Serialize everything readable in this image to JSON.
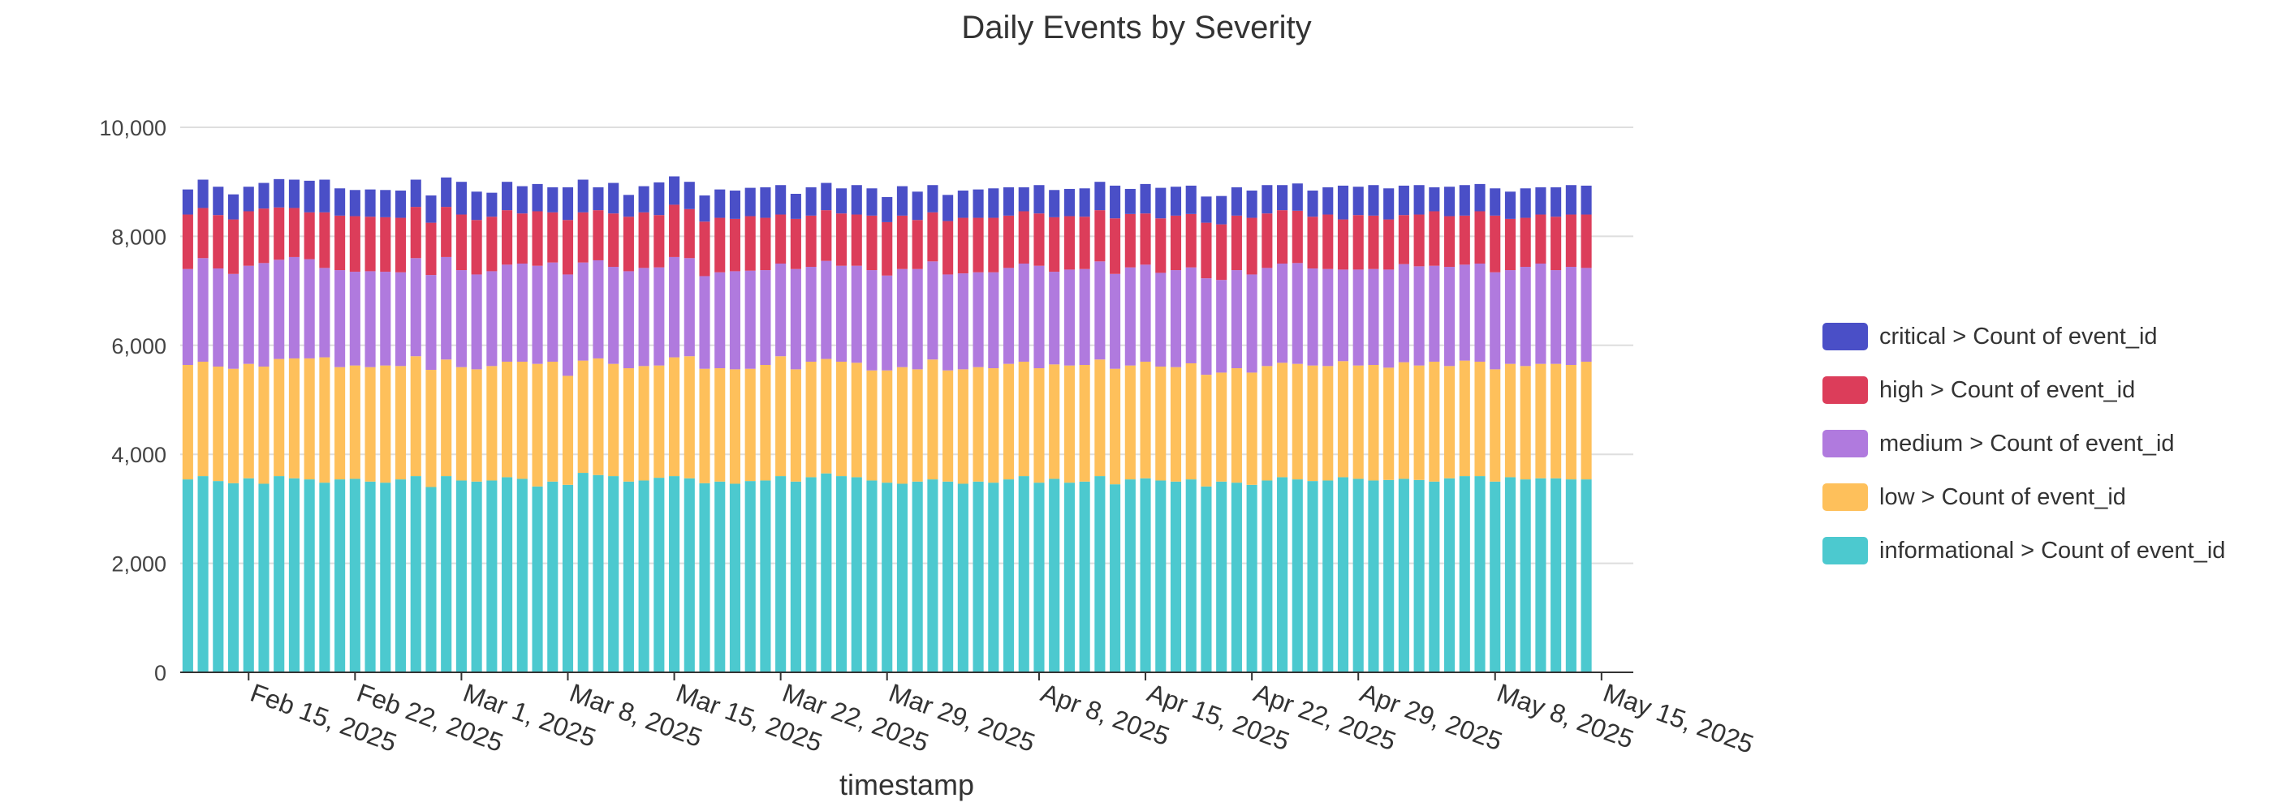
{
  "chart_data": {
    "type": "bar",
    "stacked": true,
    "title": "Daily Events by Severity",
    "xlabel": "timestamp",
    "ylabel": "",
    "ylim": [
      0,
      10000
    ],
    "yticks": [
      0,
      2000,
      4000,
      6000,
      8000,
      10000
    ],
    "ytick_labels": [
      "0",
      "2,000",
      "4,000",
      "6,000",
      "8,000",
      "10,000"
    ],
    "x_start_date": "2025-02-11",
    "x_end_date": "2025-05-13",
    "xticks": [
      "2025-02-15",
      "2025-02-22",
      "2025-03-01",
      "2025-03-08",
      "2025-03-15",
      "2025-03-22",
      "2025-03-29",
      "2025-04-08",
      "2025-04-15",
      "2025-04-22",
      "2025-04-29",
      "2025-05-08",
      "2025-05-15"
    ],
    "xtick_labels": [
      "Feb 15, 2025",
      "Feb 22, 2025",
      "Mar 1, 2025",
      "Mar 8, 2025",
      "Mar 15, 2025",
      "Mar 22, 2025",
      "Mar 29, 2025",
      "Apr 8, 2025",
      "Apr 15, 2025",
      "Apr 22, 2025",
      "Apr 29, 2025",
      "May 8, 2025",
      "May 15, 2025"
    ],
    "grid": true,
    "legend_position": "right",
    "series": [
      {
        "name": "informational > Count of event_id",
        "color": "#4CC9CF",
        "values": [
          3540,
          3600,
          3510,
          3470,
          3560,
          3460,
          3600,
          3560,
          3540,
          3480,
          3540,
          3550,
          3500,
          3480,
          3540,
          3600,
          3400,
          3600,
          3520,
          3500,
          3520,
          3580,
          3550,
          3410,
          3500,
          3440,
          3660,
          3620,
          3600,
          3500,
          3520,
          3570,
          3600,
          3560,
          3470,
          3500,
          3460,
          3510,
          3520,
          3600,
          3500,
          3580,
          3650,
          3600,
          3580,
          3520,
          3480,
          3460,
          3500,
          3540,
          3500,
          3460,
          3500,
          3480,
          3540,
          3600,
          3480,
          3550,
          3480,
          3500,
          3600,
          3450,
          3540,
          3560,
          3520,
          3500,
          3540,
          3410,
          3500,
          3480,
          3440,
          3520,
          3580,
          3540,
          3510,
          3520,
          3580,
          3550,
          3520,
          3530,
          3550,
          3530,
          3500,
          3560,
          3600,
          3600,
          3500,
          3580,
          3540,
          3560,
          3560,
          3540,
          3540
        ]
      },
      {
        "name": "low > Count of event_id",
        "color": "#FEC05B",
        "values": [
          2100,
          2100,
          2100,
          2100,
          2100,
          2150,
          2150,
          2200,
          2220,
          2300,
          2060,
          2080,
          2100,
          2150,
          2080,
          2200,
          2150,
          2140,
          2080,
          2060,
          2100,
          2120,
          2150,
          2250,
          2200,
          2000,
          2060,
          2140,
          2060,
          2080,
          2100,
          2060,
          2180,
          2240,
          2100,
          2080,
          2100,
          2060,
          2120,
          2200,
          2060,
          2120,
          2100,
          2100,
          2100,
          2020,
          2060,
          2140,
          2060,
          2200,
          2040,
          2100,
          2100,
          2100,
          2120,
          2100,
          2100,
          2100,
          2150,
          2140,
          2140,
          2120,
          2090,
          2140,
          2090,
          2100,
          2130,
          2050,
          2000,
          2100,
          2060,
          2100,
          2100,
          2120,
          2120,
          2100,
          2130,
          2080,
          2120,
          2060,
          2140,
          2100,
          2200,
          2060,
          2120,
          2100,
          2060,
          2080,
          2080,
          2100,
          2100,
          2100,
          2160
        ]
      },
      {
        "name": "medium > Count of event_id",
        "color": "#B07ADE",
        "values": [
          1760,
          1900,
          1800,
          1740,
          1800,
          1900,
          1820,
          1860,
          1820,
          1640,
          1780,
          1720,
          1760,
          1720,
          1720,
          1800,
          1740,
          1880,
          1780,
          1740,
          1740,
          1780,
          1800,
          1800,
          1820,
          1860,
          1800,
          1800,
          1780,
          1780,
          1800,
          1800,
          1840,
          1800,
          1700,
          1760,
          1800,
          1800,
          1740,
          1700,
          1840,
          1740,
          1800,
          1760,
          1780,
          1840,
          1740,
          1800,
          1840,
          1800,
          1760,
          1760,
          1740,
          1760,
          1760,
          1800,
          1880,
          1700,
          1760,
          1760,
          1800,
          1740,
          1800,
          1780,
          1720,
          1780,
          1760,
          1770,
          1700,
          1800,
          1800,
          1800,
          1820,
          1850,
          1780,
          1780,
          1680,
          1760,
          1760,
          1800,
          1800,
          1820,
          1760,
          1820,
          1760,
          1800,
          1780,
          1720,
          1820,
          1840,
          1720,
          1800,
          1720
        ]
      },
      {
        "name": "high > Count of event_id",
        "color": "#DC3D5A",
        "values": [
          1000,
          920,
          980,
          1000,
          1000,
          1000,
          960,
          900,
          860,
          1020,
          1000,
          1020,
          1000,
          1000,
          1000,
          940,
          960,
          920,
          1020,
          1000,
          1000,
          1000,
          920,
          1000,
          920,
          1000,
          920,
          920,
          980,
          1000,
          1020,
          960,
          960,
          900,
          1000,
          1000,
          960,
          1000,
          960,
          900,
          920,
          940,
          930,
          960,
          940,
          1000,
          980,
          980,
          900,
          900,
          980,
          1020,
          1000,
          1000,
          960,
          960,
          960,
          1000,
          980,
          960,
          940,
          1020,
          980,
          940,
          1000,
          1000,
          980,
          1020,
          1020,
          1000,
          1040,
          1000,
          980,
          960,
          950,
          1000,
          920,
          1000,
          980,
          920,
          900,
          950,
          1000,
          930,
          900,
          960,
          1040,
          940,
          900,
          900,
          980,
          960,
          980
        ]
      },
      {
        "name": "critical > Count of event_id",
        "color": "#4A4FC7",
        "values": [
          460,
          520,
          520,
          460,
          450,
          470,
          520,
          520,
          580,
          600,
          500,
          480,
          500,
          500,
          500,
          500,
          500,
          540,
          600,
          520,
          440,
          520,
          500,
          500,
          460,
          600,
          600,
          420,
          560,
          400,
          480,
          600,
          520,
          500,
          480,
          520,
          520,
          520,
          560,
          540,
          460,
          520,
          500,
          460,
          540,
          500,
          460,
          540,
          520,
          500,
          480,
          500,
          520,
          540,
          520,
          440,
          520,
          500,
          500,
          520,
          520,
          600,
          460,
          540,
          560,
          530,
          520,
          480,
          520,
          520,
          500,
          520,
          460,
          500,
          480,
          500,
          620,
          520,
          560,
          570,
          540,
          540,
          440,
          540,
          560,
          500,
          500,
          500,
          540,
          500,
          540,
          540,
          530
        ]
      }
    ]
  }
}
